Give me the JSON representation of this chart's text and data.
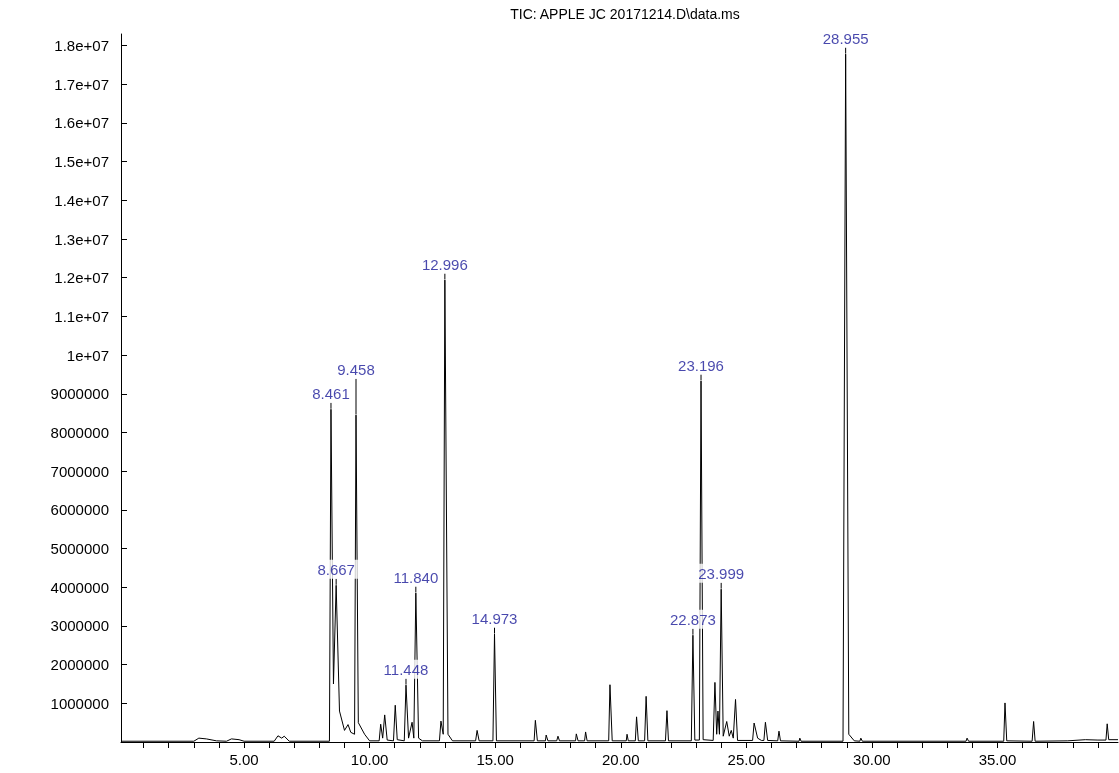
{
  "chart_data": {
    "type": "line",
    "title": "TIC: APPLE JC 20171214.D\\data.ms",
    "x": [
      0.1,
      3.0,
      3.2,
      3.5,
      3.9,
      4.3,
      4.5,
      4.8,
      5.0,
      6.2,
      6.35,
      6.5,
      6.6,
      6.8,
      8.4,
      8.461,
      8.56,
      8.667,
      8.8,
      9.0,
      9.14,
      9.25,
      9.4,
      9.458,
      9.55,
      9.8,
      10.0,
      10.38,
      10.44,
      10.52,
      10.6,
      10.7,
      10.95,
      11.02,
      11.1,
      11.38,
      11.448,
      11.55,
      11.69,
      11.76,
      11.84,
      11.95,
      12.1,
      12.78,
      12.84,
      12.93,
      12.996,
      13.12,
      13.3,
      14.22,
      14.28,
      14.36,
      14.91,
      14.973,
      15.05,
      16.55,
      16.6,
      16.68,
      17.0,
      17.03,
      17.1,
      17.45,
      17.5,
      17.56,
      18.2,
      18.23,
      18.3,
      18.56,
      18.6,
      18.66,
      19.52,
      19.57,
      19.66,
      20.22,
      20.25,
      20.3,
      20.58,
      20.63,
      20.7,
      20.95,
      21.01,
      21.08,
      21.78,
      21.84,
      21.9,
      22.81,
      22.873,
      22.95,
      23.13,
      23.196,
      23.28,
      23.68,
      23.75,
      23.82,
      23.87,
      23.93,
      23.999,
      24.08,
      24.22,
      24.32,
      24.4,
      24.48,
      24.57,
      24.65,
      25.25,
      25.31,
      25.45,
      25.6,
      25.7,
      25.76,
      25.85,
      26.25,
      26.3,
      26.36,
      27.1,
      27.13,
      27.18,
      28.85,
      28.955,
      29.08,
      29.3,
      29.52,
      29.56,
      29.62,
      33.75,
      33.79,
      33.85,
      35.25,
      35.3,
      35.37,
      36.38,
      36.44,
      36.5,
      37.8,
      38.5,
      39.0,
      39.32,
      39.37,
      39.43,
      39.8
    ],
    "series": [
      {
        "color": "#000000",
        "values": [
          20000,
          20000,
          100000,
          80000,
          30000,
          20000,
          80000,
          60000,
          20000,
          20000,
          160000,
          100000,
          150000,
          20000,
          20000,
          8600000,
          1500000,
          4050000,
          800000,
          300000,
          450000,
          250000,
          200000,
          8450000,
          500000,
          200000,
          30000,
          30000,
          460000,
          100000,
          700000,
          50000,
          30000,
          950000,
          60000,
          30000,
          1470000,
          100000,
          510000,
          100000,
          3850000,
          100000,
          30000,
          30000,
          540000,
          200000,
          11940000,
          200000,
          30000,
          30000,
          300000,
          30000,
          30000,
          2790000,
          30000,
          30000,
          560000,
          30000,
          30000,
          180000,
          30000,
          30000,
          150000,
          30000,
          30000,
          210000,
          30000,
          30000,
          260000,
          30000,
          30000,
          1480000,
          30000,
          30000,
          200000,
          30000,
          30000,
          650000,
          30000,
          30000,
          1180000,
          30000,
          30000,
          810000,
          30000,
          30000,
          2760000,
          50000,
          50000,
          9330000,
          60000,
          40000,
          1540000,
          200000,
          800000,
          200000,
          3950000,
          150000,
          530000,
          150000,
          300000,
          100000,
          1100000,
          40000,
          40000,
          490000,
          100000,
          40000,
          40000,
          510000,
          40000,
          30000,
          280000,
          30000,
          20000,
          100000,
          20000,
          20000,
          17780000,
          200000,
          30000,
          20000,
          100000,
          20000,
          20000,
          100000,
          20000,
          20000,
          1010000,
          30000,
          20000,
          530000,
          20000,
          30000,
          60000,
          50000,
          50000,
          470000,
          60000,
          60000
        ]
      }
    ],
    "annotations": [
      {
        "text": "8.461",
        "x": 8.461,
        "y": 8600000
      },
      {
        "text": "8.667",
        "x": 8.667,
        "y": 4050000
      },
      {
        "text": "9.458",
        "x": 9.458,
        "y": 8450000
      },
      {
        "text": "11.448",
        "x": 11.448,
        "y": 1470000
      },
      {
        "text": "11.840",
        "x": 11.84,
        "y": 3850000
      },
      {
        "text": "12.996",
        "x": 12.996,
        "y": 11940000
      },
      {
        "text": "14.973",
        "x": 14.973,
        "y": 2790000
      },
      {
        "text": "22.873",
        "x": 22.873,
        "y": 2760000
      },
      {
        "text": "23.196",
        "x": 23.196,
        "y": 9330000
      },
      {
        "text": "23.999",
        "x": 23.999,
        "y": 3950000
      },
      {
        "text": "28.955",
        "x": 28.955,
        "y": 17780000
      }
    ],
    "xlim": [
      0.1,
      39.8
    ],
    "xticks": [
      {
        "value": 1,
        "label": null
      },
      {
        "value": 2,
        "label": null
      },
      {
        "value": 3,
        "label": null
      },
      {
        "value": 4,
        "label": null
      },
      {
        "value": 5,
        "label": "5.00"
      },
      {
        "value": 6,
        "label": null
      },
      {
        "value": 7,
        "label": null
      },
      {
        "value": 8,
        "label": null
      },
      {
        "value": 9,
        "label": null
      },
      {
        "value": 10,
        "label": "10.00"
      },
      {
        "value": 11,
        "label": null
      },
      {
        "value": 12,
        "label": null
      },
      {
        "value": 13,
        "label": null
      },
      {
        "value": 14,
        "label": null
      },
      {
        "value": 15,
        "label": "15.00"
      },
      {
        "value": 16,
        "label": null
      },
      {
        "value": 17,
        "label": null
      },
      {
        "value": 18,
        "label": null
      },
      {
        "value": 19,
        "label": null
      },
      {
        "value": 20,
        "label": "20.00"
      },
      {
        "value": 21,
        "label": null
      },
      {
        "value": 22,
        "label": null
      },
      {
        "value": 23,
        "label": null
      },
      {
        "value": 24,
        "label": null
      },
      {
        "value": 25,
        "label": "25.00"
      },
      {
        "value": 26,
        "label": null
      },
      {
        "value": 27,
        "label": null
      },
      {
        "value": 28,
        "label": null
      },
      {
        "value": 29,
        "label": null
      },
      {
        "value": 30,
        "label": "30.00"
      },
      {
        "value": 31,
        "label": null
      },
      {
        "value": 32,
        "label": null
      },
      {
        "value": 33,
        "label": null
      },
      {
        "value": 34,
        "label": null
      },
      {
        "value": 35,
        "label": "35.00"
      },
      {
        "value": 36,
        "label": null
      },
      {
        "value": 37,
        "label": null
      },
      {
        "value": 38,
        "label": null
      },
      {
        "value": 39,
        "label": null
      }
    ],
    "ylim": [
      0,
      18300000
    ],
    "yticks": [
      1000000,
      2000000,
      3000000,
      4000000,
      5000000,
      6000000,
      7000000,
      8000000,
      9000000,
      {
        "value": 10000000,
        "label": "1e+07"
      },
      {
        "value": 11000000,
        "label": "1.1e+07"
      },
      {
        "value": 12000000,
        "label": "1.2e+07"
      },
      {
        "value": 13000000,
        "label": "1.3e+07"
      },
      {
        "value": 14000000,
        "label": "1.4e+07"
      },
      {
        "value": 15000000,
        "label": "1.5e+07"
      },
      {
        "value": 16000000,
        "label": "1.6e+07"
      },
      {
        "value": 17000000,
        "label": "1.7e+07"
      },
      {
        "value": 18000000,
        "label": "1.8e+07"
      }
    ],
    "grid": false,
    "marker": "none",
    "line_style": "solid"
  }
}
